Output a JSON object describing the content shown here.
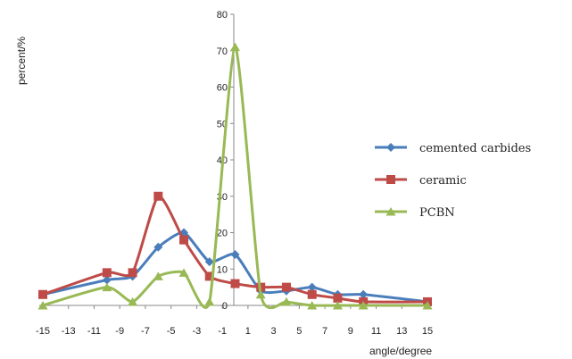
{
  "chart_data": {
    "type": "line",
    "xlabel": "angle/degree",
    "ylabel": "percent/%",
    "xlim": [
      -15,
      15
    ],
    "ylim": [
      0,
      80
    ],
    "x_ticks": [
      "-15",
      "-13",
      "-11",
      "-9",
      "-7",
      "-5",
      "-3",
      "-1",
      "1",
      "3",
      "5",
      "7",
      "9",
      "11",
      "13",
      "15"
    ],
    "y_ticks": [
      "0",
      "10",
      "20",
      "30",
      "40",
      "50",
      "60",
      "70",
      "80"
    ],
    "grid": false,
    "legend_position": "right",
    "series": [
      {
        "name": "cemented carbides",
        "color": "#4a7ebb",
        "marker": "diamond",
        "x": [
          -15,
          -10,
          -8,
          -6,
          -4,
          -2,
          0,
          2,
          4,
          6,
          8,
          10,
          15
        ],
        "y": [
          3,
          7,
          8,
          16,
          20,
          12,
          14,
          4,
          4,
          5,
          3,
          3,
          1
        ]
      },
      {
        "name": "ceramic",
        "color": "#be4b48",
        "marker": "square",
        "x": [
          -15,
          -10,
          -8,
          -6,
          -4,
          -2,
          0,
          2,
          4,
          6,
          8,
          10,
          15
        ],
        "y": [
          3,
          9,
          9,
          30,
          18,
          8,
          6,
          5,
          5,
          3,
          2,
          1,
          1
        ]
      },
      {
        "name": "PCBN",
        "color": "#98b954",
        "marker": "triangle",
        "x": [
          -15,
          -10,
          -8,
          -6,
          -4,
          -2,
          0,
          2,
          4,
          6,
          8,
          10,
          15
        ],
        "y": [
          0,
          5,
          1,
          8,
          9,
          1,
          71,
          3,
          1,
          0,
          0,
          0,
          0
        ]
      }
    ]
  }
}
